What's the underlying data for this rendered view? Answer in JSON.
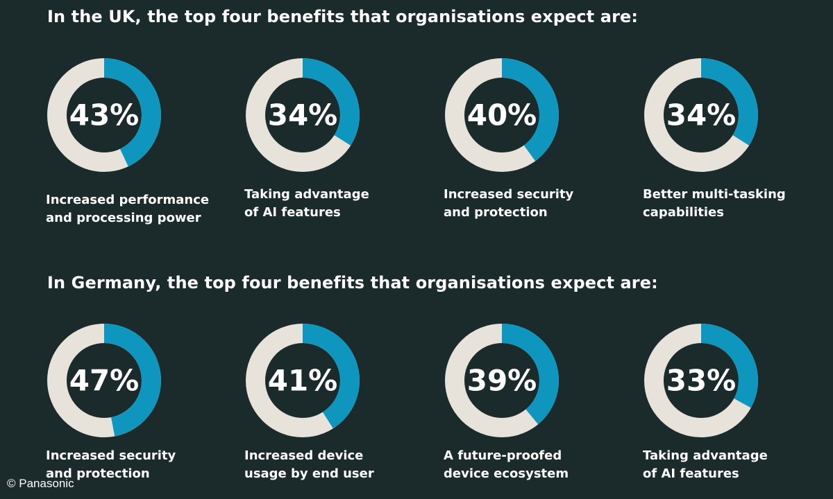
{
  "chart_data": [
    {
      "type": "pie",
      "title": "In the UK, the top four benefits that organisations expect are:",
      "categories": [
        [
          "Increased performance",
          "and processing power"
        ],
        [
          "Taking advantage",
          "of AI features"
        ],
        [
          "Increased security",
          "and protection"
        ],
        [
          "Better multi-tasking",
          "capabilities"
        ]
      ],
      "values": [
        43,
        34,
        40,
        34
      ],
      "labels": [
        "43%",
        "34%",
        "40%",
        "34%"
      ]
    },
    {
      "type": "pie",
      "title": "In Germany, the top four benefits that organisations expect are:",
      "categories": [
        [
          "Increased security",
          "and protection"
        ],
        [
          "Increased device",
          "usage by end user"
        ],
        [
          "A future-proofed",
          "device ecosystem"
        ],
        [
          "Taking advantage",
          "of AI features"
        ]
      ],
      "values": [
        47,
        41,
        39,
        33
      ],
      "labels": [
        "47%",
        "41%",
        "39%",
        "33%"
      ]
    }
  ],
  "colors": {
    "background": "#1b2a2b",
    "accent": "#0f96be",
    "track": "#e8e3da",
    "text": "#ffffff"
  },
  "credit": "© Panasonic"
}
